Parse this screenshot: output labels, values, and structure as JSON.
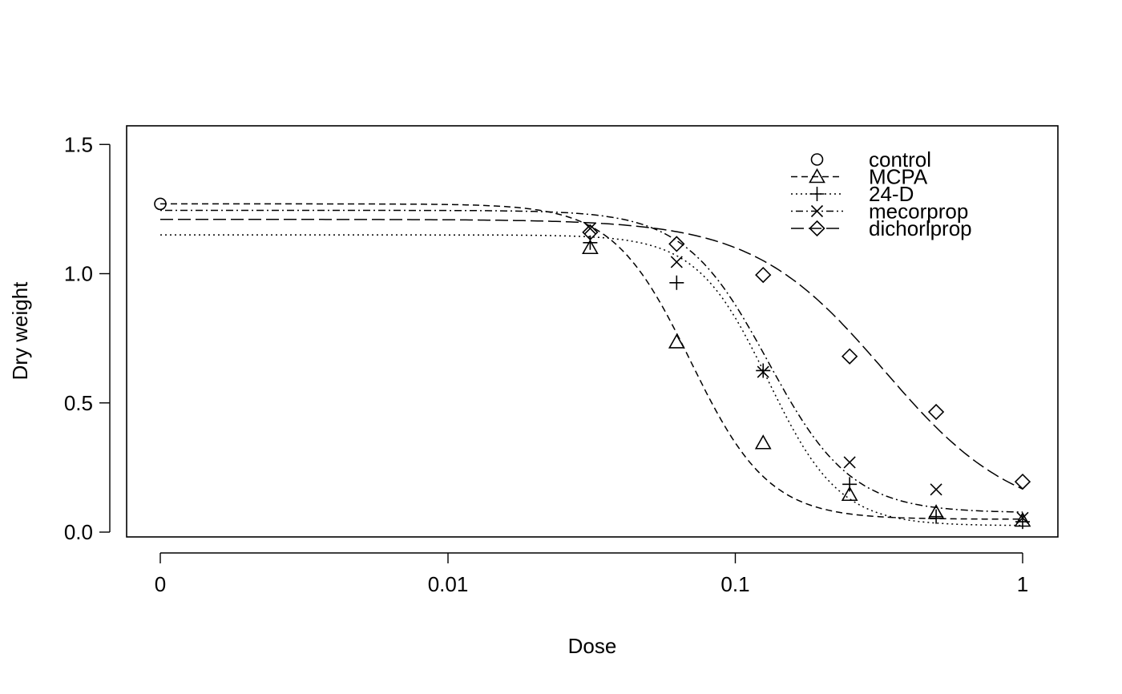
{
  "chart_data": {
    "type": "line",
    "title": "",
    "xlabel": "Dose",
    "ylabel": "Dry weight",
    "x_scale": "log",
    "x_ticks": [
      {
        "value": 0,
        "label": "0"
      },
      {
        "value": 0.01,
        "label": "0.01"
      },
      {
        "value": 0.1,
        "label": "0.1"
      },
      {
        "value": 1,
        "label": "1"
      }
    ],
    "y_ticks": [
      {
        "value": 0.0,
        "label": "0.0"
      },
      {
        "value": 0.5,
        "label": "0.5"
      },
      {
        "value": 1.0,
        "label": "1.0"
      },
      {
        "value": 1.5,
        "label": "1.5"
      }
    ],
    "xlim": [
      0,
      1
    ],
    "ylim": [
      0,
      1.5
    ],
    "grid": false,
    "legend_position": "top-right",
    "series": [
      {
        "name": "control",
        "marker": "circle",
        "linestyle": "none",
        "points": [
          [
            0,
            1.27
          ]
        ],
        "curve": null
      },
      {
        "name": "MCPA",
        "marker": "triangle",
        "linestyle": "dashed",
        "points": [
          [
            0.03125,
            1.1
          ],
          [
            0.0625,
            0.735
          ],
          [
            0.125,
            0.345
          ],
          [
            0.25,
            0.145
          ],
          [
            0.5,
            0.075
          ],
          [
            1,
            0.045
          ]
        ],
        "curve": {
          "upper": 1.27,
          "lower": 0.05,
          "ed50": 0.07,
          "slope": 3.2
        }
      },
      {
        "name": "24-D",
        "marker": "plus",
        "linestyle": "dotted",
        "points": [
          [
            0.03125,
            1.12
          ],
          [
            0.0625,
            0.965
          ],
          [
            0.125,
            0.625
          ],
          [
            0.25,
            0.185
          ],
          [
            0.5,
            0.06
          ],
          [
            1,
            0.04
          ]
        ],
        "curve": {
          "upper": 1.15,
          "lower": 0.025,
          "ed50": 0.13,
          "slope": 3.5
        }
      },
      {
        "name": "mecorprop",
        "marker": "cross",
        "linestyle": "dotdash",
        "points": [
          [
            0.03125,
            1.175
          ],
          [
            0.0625,
            1.045
          ],
          [
            0.125,
            0.62
          ],
          [
            0.25,
            0.27
          ],
          [
            0.5,
            0.165
          ],
          [
            1,
            0.055
          ]
        ],
        "curve": {
          "upper": 1.245,
          "lower": 0.075,
          "ed50": 0.13,
          "slope": 3.0
        }
      },
      {
        "name": "dichorlprop",
        "marker": "diamond",
        "linestyle": "longdash",
        "points": [
          [
            0.03125,
            1.16
          ],
          [
            0.0625,
            1.115
          ],
          [
            0.125,
            0.995
          ],
          [
            0.25,
            0.68
          ],
          [
            0.5,
            0.465
          ],
          [
            1,
            0.195
          ]
        ],
        "curve": {
          "upper": 1.21,
          "lower": 0.04,
          "ed50": 0.33,
          "slope": 1.9
        }
      }
    ]
  }
}
